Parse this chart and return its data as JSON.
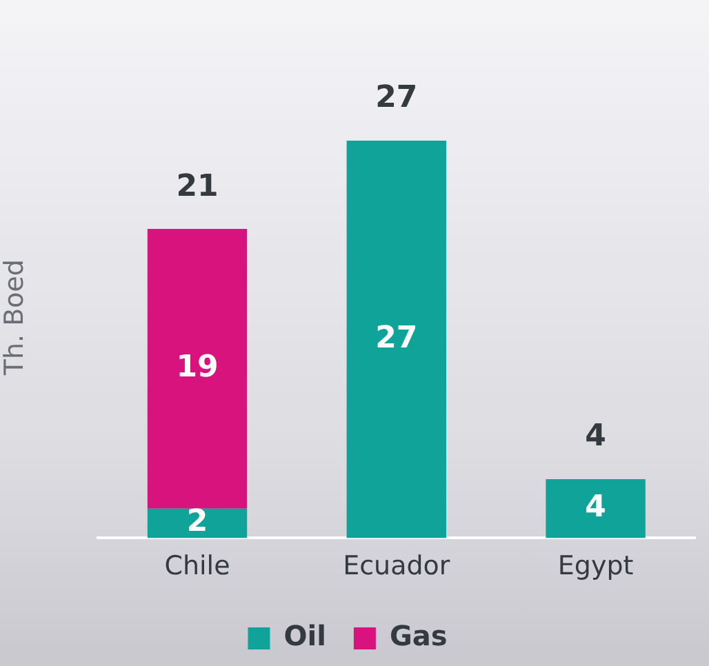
{
  "chart_data": {
    "type": "bar",
    "stacked": true,
    "ylabel": "Th. Boed",
    "categories": [
      "Chile",
      "Ecuador",
      "Egypt"
    ],
    "series": [
      {
        "name": "Oil",
        "color": "#0fa39a",
        "values": [
          2,
          27,
          4
        ]
      },
      {
        "name": "Gas",
        "color": "#d8137e",
        "values": [
          19,
          null,
          null
        ]
      }
    ],
    "data_labels": true,
    "totals": [
      "21",
      "27",
      "4"
    ],
    "legend": "bottom",
    "grid": false
  }
}
